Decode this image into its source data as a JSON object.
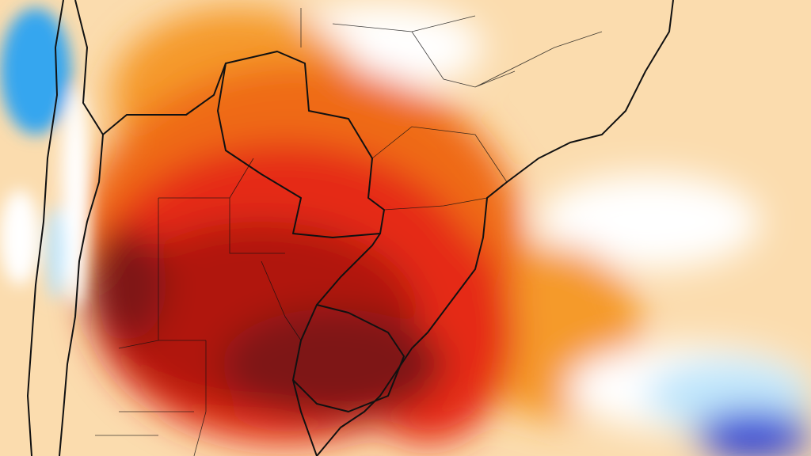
{
  "map": {
    "colors": {
      "background": "#fbdcae",
      "light_orange": "#f9c27a",
      "orange": "#f59a2a",
      "dark_orange": "#ef6a14",
      "red": "#e52a12",
      "dark_red": "#b0140f",
      "maroon": "#7e1414",
      "white": "#ffffff",
      "light_blue": "#bfe6fb",
      "blue": "#36a6ef",
      "deep_blue": "#0a2bd6",
      "border": "#111111"
    }
  }
}
